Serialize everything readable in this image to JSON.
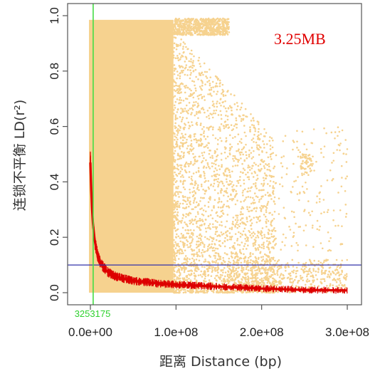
{
  "chart_data": {
    "type": "scatter",
    "xlabel": "距离 Distance (bp)",
    "ylabel": "连锁不平衡 LD(r²)",
    "xlim": [
      0,
      300000000
    ],
    "ylim": [
      0,
      1
    ],
    "x_ticks": [
      0,
      100000000,
      200000000,
      300000000
    ],
    "x_tick_labels": [
      "0.0e+00",
      "1.0e+08",
      "2.0e+08",
      "3.0e+08"
    ],
    "y_ticks": [
      0,
      0.2,
      0.4,
      0.6,
      0.8,
      1.0
    ],
    "y_tick_labels": [
      "0.0",
      "0.2",
      "0.4",
      "0.6",
      "0.8",
      "1.0"
    ],
    "annotation": "3.25MB",
    "reference_lines": {
      "vertical": {
        "x": 3253175,
        "label": "3253175",
        "color": "#44dd44"
      },
      "horizontal": {
        "y": 0.1,
        "color": "#3333aa"
      }
    },
    "decay_curve": {
      "color": "#dd0000",
      "x": [
        0,
        1000000,
        2000000,
        3000000,
        5000000,
        8000000,
        12000000,
        20000000,
        30000000,
        50000000,
        80000000,
        100000000,
        150000000,
        200000000,
        250000000,
        300000000
      ],
      "y": [
        0.47,
        0.37,
        0.3,
        0.25,
        0.19,
        0.14,
        0.105,
        0.075,
        0.058,
        0.043,
        0.033,
        0.029,
        0.022,
        0.015,
        0.01,
        0.008
      ]
    },
    "scatter_color": "#f6d28f",
    "grid": false,
    "frame": "box"
  }
}
